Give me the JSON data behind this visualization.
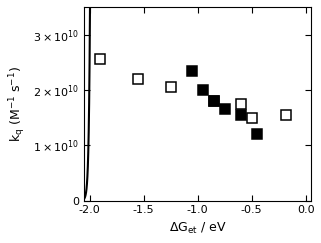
{
  "open_squares_x": [
    -1.9,
    -1.55,
    -1.25,
    -0.85,
    -0.6,
    -0.5,
    -0.18
  ],
  "open_squares_y": [
    25500000000.0,
    22000000000.0,
    20500000000.0,
    18000000000.0,
    17500000000.0,
    15000000000.0,
    15500000000.0
  ],
  "filled_squares_x": [
    -1.05,
    -0.95,
    -0.85,
    -0.75,
    -0.6,
    -0.45
  ],
  "filled_squares_y": [
    23500000000.0,
    20000000000.0,
    18000000000.0,
    16500000000.0,
    15500000000.0,
    12000000000.0
  ],
  "xlim": [
    -2.05,
    0.05
  ],
  "ylim": [
    0,
    35000000000.0
  ],
  "xticks": [
    -2.0,
    -1.5,
    -1.0,
    -0.5,
    0.0
  ],
  "yticks": [
    0,
    10000000000.0,
    20000000000.0,
    30000000000.0
  ],
  "marker_size": 7,
  "linewidth": 1.5,
  "background_color": "#ffffff",
  "curve_scale": 1.0
}
